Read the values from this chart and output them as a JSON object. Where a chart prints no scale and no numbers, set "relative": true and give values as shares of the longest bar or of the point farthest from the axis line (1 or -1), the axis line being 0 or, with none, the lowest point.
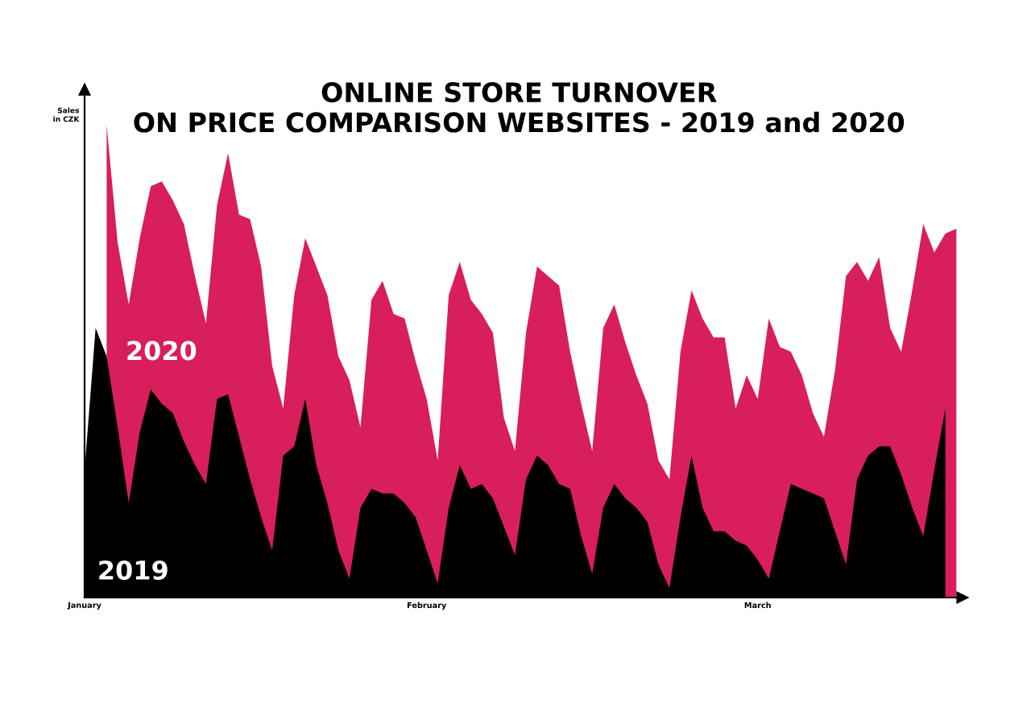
{
  "chart_data": {
    "type": "area",
    "relative": true,
    "title": "ONLINE STORE TURNOVER\nON PRICE COMPARISON WEBSITES - 2019 and 2020",
    "ylabel": "Sales\nin CZK",
    "categories": [
      "January",
      null,
      null,
      null,
      null,
      null,
      null,
      null,
      null,
      null,
      null,
      null,
      null,
      null,
      null,
      null,
      null,
      null,
      null,
      null,
      null,
      null,
      null,
      null,
      null,
      null,
      null,
      null,
      null,
      null,
      null,
      "February",
      null,
      null,
      null,
      null,
      null,
      null,
      null,
      null,
      null,
      null,
      null,
      null,
      null,
      null,
      null,
      null,
      null,
      null,
      null,
      null,
      null,
      null,
      null,
      null,
      null,
      null,
      null,
      null,
      null,
      "March",
      null,
      null,
      null,
      null,
      null,
      null,
      null,
      null,
      null,
      null,
      null,
      null,
      null,
      null,
      null,
      null,
      null,
      null
    ],
    "series": [
      {
        "name": "2020",
        "color": "#d81e5b",
        "values": [
          null,
          null,
          1.0,
          0.75,
          0.62,
          0.76,
          0.87,
          0.88,
          0.84,
          0.79,
          0.68,
          0.58,
          0.83,
          0.94,
          0.81,
          0.8,
          0.7,
          0.49,
          0.4,
          0.64,
          0.76,
          0.7,
          0.64,
          0.51,
          0.46,
          0.36,
          0.63,
          0.67,
          0.6,
          0.59,
          0.5,
          0.42,
          0.29,
          0.64,
          0.71,
          0.63,
          0.6,
          0.56,
          0.38,
          0.31,
          0.56,
          0.7,
          0.68,
          0.66,
          0.52,
          0.41,
          0.31,
          0.57,
          0.62,
          0.54,
          0.47,
          0.41,
          0.29,
          0.25,
          0.52,
          0.65,
          0.59,
          0.55,
          0.55,
          0.4,
          0.47,
          0.42,
          0.59,
          0.53,
          0.52,
          0.47,
          0.39,
          0.34,
          0.48,
          0.68,
          0.71,
          0.67,
          0.72,
          0.57,
          0.52,
          0.65,
          0.79,
          0.73,
          0.77,
          0.78
        ]
      },
      {
        "name": "2019",
        "color": "#000000",
        "values": [
          0.27,
          0.57,
          0.51,
          0.36,
          0.2,
          0.35,
          0.44,
          0.41,
          0.39,
          0.33,
          0.28,
          0.24,
          0.42,
          0.43,
          0.34,
          0.25,
          0.17,
          0.1,
          0.3,
          0.32,
          0.42,
          0.28,
          0.2,
          0.1,
          0.04,
          0.19,
          0.23,
          0.22,
          0.22,
          0.2,
          0.17,
          0.1,
          0.03,
          0.19,
          0.28,
          0.23,
          0.24,
          0.21,
          0.15,
          0.09,
          0.25,
          0.3,
          0.28,
          0.24,
          0.23,
          0.13,
          0.05,
          0.19,
          0.24,
          0.21,
          0.19,
          0.16,
          0.07,
          0.02,
          0.17,
          0.3,
          0.19,
          0.14,
          0.14,
          0.12,
          0.11,
          0.08,
          0.04,
          0.14,
          0.24,
          0.23,
          0.22,
          0.21,
          0.14,
          0.07,
          0.25,
          0.3,
          0.32,
          0.32,
          0.26,
          0.19,
          0.13,
          0.27,
          0.4,
          null
        ]
      }
    ]
  }
}
